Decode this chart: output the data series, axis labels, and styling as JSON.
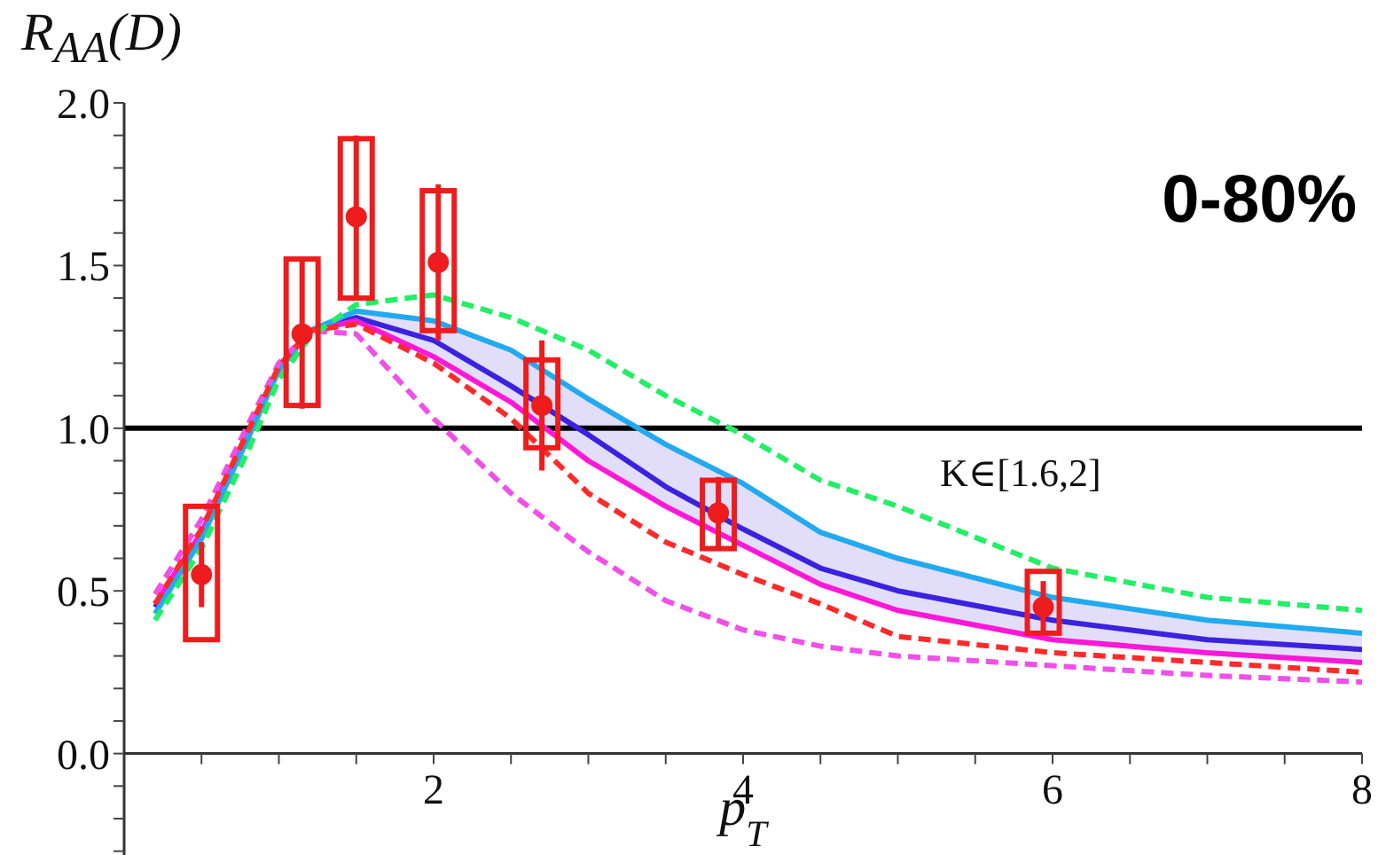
{
  "chart_data": {
    "type": "line",
    "xlabel": "p$_{T}$",
    "ylabel": "R$_{AA}$(D)",
    "xlim": [
      0,
      8
    ],
    "ylim": [
      -0.35,
      2.0
    ],
    "xticks": [
      {
        "value": 0.5,
        "label": null
      },
      {
        "value": 1,
        "label": null
      },
      {
        "value": 1.5,
        "label": null
      },
      {
        "value": 2,
        "label": "2"
      },
      {
        "value": 2.5,
        "label": null
      },
      {
        "value": 3,
        "label": null
      },
      {
        "value": 3.5,
        "label": null
      },
      {
        "value": 4,
        "label": "4"
      },
      {
        "value": 4.5,
        "label": null
      },
      {
        "value": 5,
        "label": null
      },
      {
        "value": 5.5,
        "label": null
      },
      {
        "value": 6,
        "label": "6"
      },
      {
        "value": 6.5,
        "label": null
      },
      {
        "value": 7,
        "label": null
      },
      {
        "value": 7.5,
        "label": null
      },
      {
        "value": 8,
        "label": "8"
      }
    ],
    "yticks": [
      {
        "value": -0.3,
        "label": null
      },
      {
        "value": -0.2,
        "label": null
      },
      {
        "value": -0.1,
        "label": null
      },
      {
        "value": 0,
        "label": "0.0"
      },
      {
        "value": 0.1,
        "label": null
      },
      {
        "value": 0.2,
        "label": null
      },
      {
        "value": 0.3,
        "label": null
      },
      {
        "value": 0.4,
        "label": null
      },
      {
        "value": 0.5,
        "label": "0.5"
      },
      {
        "value": 0.6,
        "label": null
      },
      {
        "value": 0.7,
        "label": null
      },
      {
        "value": 0.8,
        "label": null
      },
      {
        "value": 0.9,
        "label": null
      },
      {
        "value": 1,
        "label": "1.0"
      },
      {
        "value": 1.1,
        "label": null
      },
      {
        "value": 1.2,
        "label": null
      },
      {
        "value": 1.3,
        "label": null
      },
      {
        "value": 1.4,
        "label": null
      },
      {
        "value": 1.5,
        "label": "1.5"
      },
      {
        "value": 1.6,
        "label": null
      },
      {
        "value": 1.7,
        "label": null
      },
      {
        "value": 1.8,
        "label": null
      },
      {
        "value": 1.9,
        "label": null
      },
      {
        "value": 2,
        "label": "2.0"
      }
    ],
    "grid": false,
    "legend": false,
    "series": [
      {
        "color": "#f050e8",
        "line_style": "dashed",
        "x": [
          0.2,
          0.5,
          0.8,
          1.0,
          1.2,
          1.5,
          2,
          2.5,
          3,
          3.5,
          4,
          4.5,
          5,
          6,
          7,
          8
        ],
        "values": [
          0.49,
          0.72,
          1.01,
          1.2,
          1.3,
          1.29,
          1.03,
          0.8,
          0.62,
          0.47,
          0.38,
          0.33,
          0.3,
          0.27,
          0.24,
          0.22
        ]
      },
      {
        "color": "#ff2a2a",
        "line_style": "dashed",
        "x": [
          0.2,
          0.5,
          0.8,
          1.0,
          1.2,
          1.5,
          2,
          2.5,
          3,
          3.5,
          4,
          4.5,
          5,
          6,
          7,
          8
        ],
        "values": [
          0.46,
          0.69,
          0.99,
          1.19,
          1.3,
          1.32,
          1.2,
          1.03,
          0.8,
          0.65,
          0.55,
          0.46,
          0.36,
          0.31,
          0.28,
          0.25
        ]
      },
      {
        "color": "#22ee66",
        "line_style": "dashed",
        "x": [
          0.2,
          0.5,
          0.8,
          1.0,
          1.2,
          1.5,
          2,
          2.5,
          3,
          3.5,
          4,
          4.5,
          5,
          6,
          7,
          8
        ],
        "values": [
          0.41,
          0.63,
          0.93,
          1.15,
          1.28,
          1.38,
          1.41,
          1.34,
          1.24,
          1.1,
          0.98,
          0.84,
          0.76,
          0.57,
          0.48,
          0.44
        ]
      },
      {
        "color": "#3a22e0",
        "line_style": "solid",
        "x": [
          0.2,
          0.5,
          0.8,
          1.0,
          1.2,
          1.5,
          2,
          2.5,
          3,
          3.5,
          4,
          4.5,
          5,
          6,
          7,
          8
        ],
        "values": [
          0.45,
          0.67,
          0.97,
          1.18,
          1.3,
          1.34,
          1.27,
          1.13,
          0.98,
          0.82,
          0.69,
          0.57,
          0.5,
          0.41,
          0.35,
          0.32
        ],
        "lower": [
          0.46,
          0.68,
          0.98,
          1.19,
          1.3,
          1.33,
          1.22,
          1.08,
          0.9,
          0.76,
          0.64,
          0.52,
          0.44,
          0.35,
          0.31,
          0.28
        ],
        "upper": [
          0.43,
          0.66,
          0.97,
          1.18,
          1.3,
          1.36,
          1.33,
          1.24,
          1.09,
          0.95,
          0.83,
          0.68,
          0.6,
          0.48,
          0.41,
          0.37
        ]
      },
      {
        "color": "#ff18d8",
        "line_style": "solid",
        "x": [
          0.2,
          0.5,
          0.8,
          1.0,
          1.2,
          1.5,
          2,
          2.5,
          3,
          3.5,
          4,
          4.5,
          5,
          6,
          7,
          8
        ],
        "values": [
          0.46,
          0.68,
          0.98,
          1.19,
          1.3,
          1.33,
          1.22,
          1.08,
          0.9,
          0.76,
          0.64,
          0.52,
          0.44,
          0.35,
          0.31,
          0.28
        ]
      },
      {
        "color": "#22aaf0",
        "line_style": "solid",
        "x": [
          0.2,
          0.5,
          0.8,
          1.0,
          1.2,
          1.5,
          2,
          2.5,
          3,
          3.5,
          4,
          4.5,
          5,
          6,
          7,
          8
        ],
        "values": [
          0.43,
          0.66,
          0.97,
          1.18,
          1.3,
          1.36,
          1.33,
          1.24,
          1.09,
          0.95,
          0.83,
          0.68,
          0.6,
          0.48,
          0.41,
          0.37
        ]
      },
      {
        "type": "bar",
        "color": "#ee1c1c",
        "x": [
          0.5,
          1.15,
          1.5,
          2.03,
          2.7,
          3.84,
          5.94
        ],
        "base": [
          0.35,
          1.07,
          1.4,
          1.3,
          0.94,
          0.63,
          0.37
        ],
        "values": [
          0.41,
          0.45,
          0.49,
          0.43,
          0.27,
          0.21,
          0.19
        ]
      },
      {
        "type": "scatter",
        "color": "#ee1c1c",
        "marker": "circle",
        "x": [
          0.5,
          1.15,
          1.5,
          2.03,
          2.7,
          3.84,
          5.94
        ],
        "values": [
          0.55,
          1.29,
          1.65,
          1.51,
          1.07,
          0.74,
          0.45
        ],
        "errors": [
          0.1,
          0.23,
          0.25,
          0.24,
          0.2,
          0.11,
          0.08
        ]
      }
    ],
    "ref_lines": [
      {
        "axis": "y",
        "value": 1,
        "color": "#000000"
      }
    ],
    "annotations": [
      "0-80%",
      "K∈[1.6,2]"
    ]
  }
}
